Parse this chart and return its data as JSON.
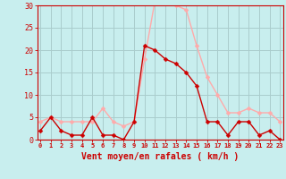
{
  "x": [
    0,
    1,
    2,
    3,
    4,
    5,
    6,
    7,
    8,
    9,
    10,
    11,
    12,
    13,
    14,
    15,
    16,
    17,
    18,
    19,
    20,
    21,
    22,
    23
  ],
  "avg_wind": [
    2,
    5,
    2,
    1,
    1,
    5,
    1,
    1,
    0,
    4,
    21,
    20,
    18,
    17,
    15,
    12,
    4,
    4,
    1,
    4,
    4,
    1,
    2,
    0
  ],
  "gust_wind": [
    4,
    5,
    4,
    4,
    4,
    4,
    7,
    4,
    3,
    4,
    18,
    31,
    31,
    30,
    29,
    21,
    14,
    10,
    6,
    6,
    7,
    6,
    6,
    4
  ],
  "avg_color": "#cc0000",
  "gust_color": "#ffaaaa",
  "bg_color": "#c8eeee",
  "grid_color": "#aacccc",
  "axis_color": "#cc0000",
  "xlabel": "Vent moyen/en rafales ( km/h )",
  "ylim": [
    0,
    30
  ],
  "yticks": [
    0,
    5,
    10,
    15,
    20,
    25,
    30
  ],
  "xticks": [
    0,
    1,
    2,
    3,
    4,
    5,
    6,
    7,
    8,
    9,
    10,
    11,
    12,
    13,
    14,
    15,
    16,
    17,
    18,
    19,
    20,
    21,
    22,
    23
  ]
}
